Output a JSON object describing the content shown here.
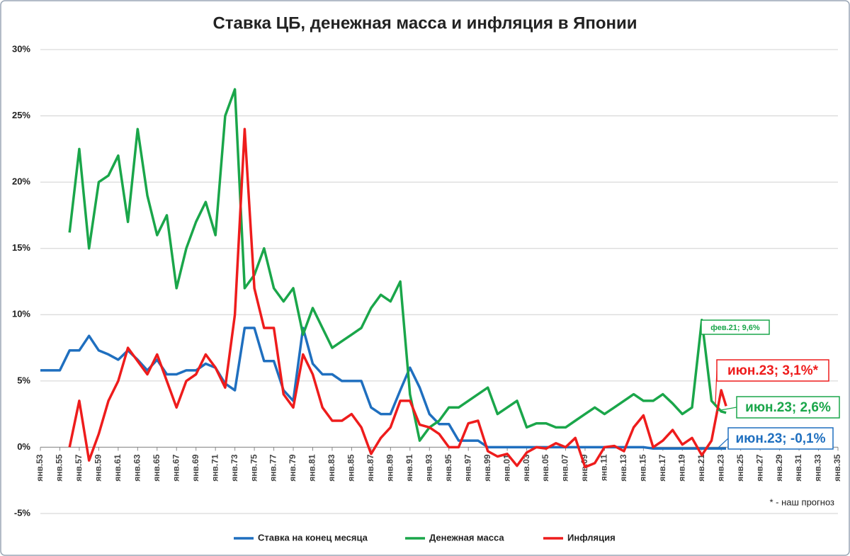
{
  "chart_data": {
    "type": "line",
    "title": "Ставка ЦБ, денежная масса и инфляция в Японии",
    "x": [
      1953,
      1954,
      1955,
      1956,
      1957,
      1958,
      1959,
      1960,
      1961,
      1962,
      1963,
      1964,
      1965,
      1966,
      1967,
      1968,
      1969,
      1970,
      1971,
      1972,
      1973,
      1974,
      1975,
      1976,
      1977,
      1978,
      1979,
      1980,
      1981,
      1982,
      1983,
      1984,
      1985,
      1986,
      1987,
      1988,
      1989,
      1990,
      1991,
      1992,
      1993,
      1994,
      1995,
      1996,
      1997,
      1998,
      1999,
      2000,
      2001,
      2002,
      2003,
      2004,
      2005,
      2006,
      2007,
      2008,
      2009,
      2010,
      2011,
      2012,
      2013,
      2014,
      2015,
      2016,
      2017,
      2018,
      2019,
      2020,
      2021,
      2022,
      2023,
      2023.5
    ],
    "series": [
      {
        "name": "Ставка на конец месяца",
        "color": "#1f6fbf",
        "values": [
          5.8,
          5.8,
          5.8,
          7.3,
          7.3,
          8.4,
          7.3,
          7.0,
          6.6,
          7.3,
          6.6,
          5.8,
          6.6,
          5.5,
          5.5,
          5.8,
          5.8,
          6.3,
          6.0,
          4.8,
          4.3,
          9.0,
          9.0,
          6.5,
          6.5,
          4.3,
          3.5,
          9.0,
          6.3,
          5.5,
          5.5,
          5.0,
          5.0,
          5.0,
          3.0,
          2.5,
          2.5,
          4.3,
          6.0,
          4.5,
          2.5,
          1.75,
          1.75,
          0.5,
          0.5,
          0.5,
          0,
          0,
          0,
          0,
          0,
          0,
          0,
          0,
          0,
          0,
          0,
          0,
          0,
          0,
          0,
          0,
          0,
          -0.1,
          -0.1,
          -0.1,
          -0.1,
          -0.1,
          -0.1,
          -0.1,
          -0.1,
          -0.1
        ]
      },
      {
        "name": "Денежная масса",
        "color": "#1aa64a",
        "values": [
          null,
          null,
          null,
          16.2,
          22.5,
          15,
          20,
          20.5,
          22,
          17,
          24,
          19,
          16,
          17.5,
          12,
          15,
          17,
          18.5,
          16,
          25,
          27,
          12,
          13,
          15,
          12,
          11,
          12,
          8.5,
          10.5,
          9,
          7.5,
          8,
          8.5,
          9,
          10.5,
          11.5,
          11,
          12.5,
          4,
          0.5,
          1.5,
          2,
          3,
          3,
          3.5,
          4,
          4.5,
          2.5,
          3,
          3.5,
          1.5,
          1.8,
          1.8,
          1.5,
          1.5,
          2,
          2.5,
          3,
          2.5,
          3,
          3.5,
          4,
          3.5,
          3.5,
          4,
          3.3,
          2.5,
          3,
          9.6,
          3.5,
          2.7,
          2.6
        ]
      },
      {
        "name": "Инфляция",
        "color": "#ee1c1c",
        "values": [
          null,
          null,
          null,
          0,
          3.5,
          -1,
          1,
          3.5,
          5,
          7.5,
          6.5,
          5.5,
          7,
          5,
          3,
          5,
          5.5,
          7,
          6,
          4.5,
          10,
          24,
          12,
          9,
          9,
          4,
          3,
          7,
          5.5,
          3,
          2,
          2,
          2.5,
          1.5,
          -0.5,
          0.7,
          1.5,
          3.5,
          3.5,
          1.7,
          1.5,
          1,
          0,
          0,
          1.8,
          2,
          -0.3,
          -0.7,
          -0.5,
          -1.4,
          -0.4,
          0,
          -0.1,
          0.3,
          0,
          0.7,
          -1.5,
          -1.2,
          0,
          0.1,
          -0.3,
          1.5,
          2.4,
          0,
          0.5,
          1.3,
          0.2,
          0.7,
          -0.6,
          0.5,
          4.3,
          3.1
        ]
      }
    ],
    "xlim": [
      1953,
      2035
    ],
    "xticks": [
      {
        "value": 1953,
        "label": "янв.53"
      },
      {
        "value": 1955,
        "label": "янв.55"
      },
      {
        "value": 1957,
        "label": "янв.57"
      },
      {
        "value": 1959,
        "label": "янв.59"
      },
      {
        "value": 1961,
        "label": "янв.61"
      },
      {
        "value": 1963,
        "label": "янв.63"
      },
      {
        "value": 1965,
        "label": "янв.65"
      },
      {
        "value": 1967,
        "label": "янв.67"
      },
      {
        "value": 1969,
        "label": "янв.69"
      },
      {
        "value": 1971,
        "label": "янв.71"
      },
      {
        "value": 1973,
        "label": "янв.73"
      },
      {
        "value": 1975,
        "label": "янв.75"
      },
      {
        "value": 1977,
        "label": "янв.77"
      },
      {
        "value": 1979,
        "label": "янв.79"
      },
      {
        "value": 1981,
        "label": "янв.81"
      },
      {
        "value": 1983,
        "label": "янв.83"
      },
      {
        "value": 1985,
        "label": "янв.85"
      },
      {
        "value": 1987,
        "label": "янв.87"
      },
      {
        "value": 1989,
        "label": "янв.89"
      },
      {
        "value": 1991,
        "label": "янв.91"
      },
      {
        "value": 1993,
        "label": "янв.93"
      },
      {
        "value": 1995,
        "label": "янв.95"
      },
      {
        "value": 1997,
        "label": "янв.97"
      },
      {
        "value": 1999,
        "label": "янв.99"
      },
      {
        "value": 2001,
        "label": "янв.01"
      },
      {
        "value": 2003,
        "label": "янв.03"
      },
      {
        "value": 2005,
        "label": "янв.05"
      },
      {
        "value": 2007,
        "label": "янв.07"
      },
      {
        "value": 2009,
        "label": "янв.09"
      },
      {
        "value": 2011,
        "label": "янв.11"
      },
      {
        "value": 2013,
        "label": "янв.13"
      },
      {
        "value": 2015,
        "label": "янв.15"
      },
      {
        "value": 2017,
        "label": "янв.17"
      },
      {
        "value": 2019,
        "label": "янв.19"
      },
      {
        "value": 2021,
        "label": "янв.21"
      },
      {
        "value": 2023,
        "label": "янв.23"
      },
      {
        "value": 2025,
        "label": "янв.25"
      },
      {
        "value": 2027,
        "label": "янв.27"
      },
      {
        "value": 2029,
        "label": "янв.29"
      },
      {
        "value": 2031,
        "label": "янв.31"
      },
      {
        "value": 2033,
        "label": "янв.33"
      },
      {
        "value": 2035,
        "label": "янв.35"
      }
    ],
    "ylim": [
      -5,
      30
    ],
    "yticks": [
      {
        "value": -5,
        "label": "-5%"
      },
      {
        "value": 0,
        "label": "0%"
      },
      {
        "value": 5,
        "label": "5%"
      },
      {
        "value": 10,
        "label": "10%"
      },
      {
        "value": 15,
        "label": "15%"
      },
      {
        "value": 20,
        "label": "20%"
      },
      {
        "value": 25,
        "label": "25%"
      },
      {
        "value": 30,
        "label": "30%"
      }
    ],
    "grid": true,
    "legend": "bottom",
    "annotations": [
      {
        "text": "фев.21; 9,6%",
        "color": "#1aa64a"
      },
      {
        "text": "июн.23; 3,1%*",
        "color": "#ee1c1c"
      },
      {
        "text": "июн.23; 2,6%",
        "color": "#1aa64a"
      },
      {
        "text": "июн.23; -0,1%",
        "color": "#1f6fbf"
      }
    ],
    "footnote": "* - наш прогноз"
  }
}
